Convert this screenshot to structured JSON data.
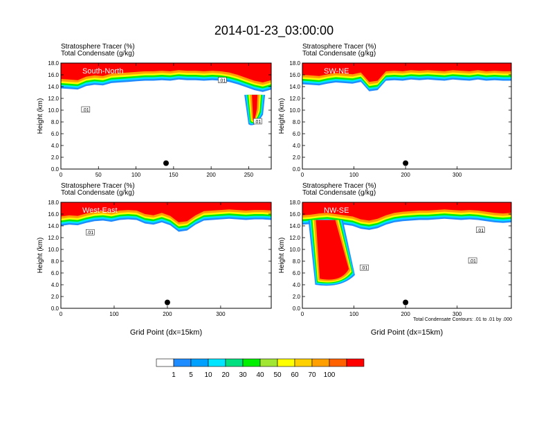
{
  "figure": {
    "title": "2014-01-23_03:00:00",
    "footnote": "Total Condensate Contours: .01 to .01 by .000"
  },
  "colorbar": {
    "colors": [
      "#ffffff",
      "#1e8cff",
      "#00a0ff",
      "#00e5ff",
      "#00e080",
      "#00ee00",
      "#a0e632",
      "#ffff00",
      "#ffd000",
      "#ffa000",
      "#ff6000",
      "#ff0000"
    ],
    "labels": [
      "1",
      "5",
      "10",
      "20",
      "30",
      "40",
      "50",
      "60",
      "70",
      "100"
    ]
  },
  "chart_data": [
    {
      "type": "heatmap",
      "panel_label": "South-North",
      "header_line1": "Stratosphere Tracer   (%)",
      "header_line2": "Total Condensate   (g/kg)",
      "ylabel": "Height (km)",
      "xlabel": "",
      "xlim": [
        0,
        280
      ],
      "ylim": [
        0,
        18
      ],
      "xticks": [
        "0",
        "50",
        "100",
        "150",
        "200",
        "250"
      ],
      "xtick_values": [
        0,
        50,
        100,
        150,
        200,
        250
      ],
      "yticks": [
        "0.0",
        "2.0",
        "4.0",
        "6.0",
        "8.0",
        "10.0",
        "12.0",
        "14.0",
        "16.0",
        "18.0"
      ],
      "tracer_base_km": [
        13.7,
        13.6,
        13.5,
        14.1,
        14.3,
        14.2,
        14.6,
        14.7,
        14.8,
        14.9,
        15.0,
        15.0,
        15.1,
        15.0,
        15.2,
        15.1,
        15.1,
        15.0,
        15.1,
        15.0,
        14.8,
        14.4,
        13.9,
        13.4,
        13.1,
        13.5
      ],
      "plume": [
        {
          "x": 258,
          "top_km": 12.6,
          "base_km": 7.6,
          "half_width": 15,
          "tip_x": 258
        }
      ],
      "marker": {
        "x": 140,
        "y_km": 1.0
      },
      "contour_labels": [
        {
          "text": ".01",
          "x": 33,
          "y_km": 10.0
        },
        {
          "text": ".01",
          "x": 215,
          "y_km": 15.0
        },
        {
          "text": ".01",
          "x": 262,
          "y_km": 8.0
        }
      ]
    },
    {
      "type": "heatmap",
      "panel_label": "SW-NE",
      "header_line1": "Stratosphere Tracer   (%)",
      "header_line2": "Total Condensate   (g/kg)",
      "ylabel": "Height (km)",
      "xlabel": "",
      "xlim": [
        0,
        405
      ],
      "ylim": [
        0,
        18
      ],
      "xticks": [
        "0",
        "100",
        "200",
        "300"
      ],
      "xtick_values": [
        0,
        100,
        200,
        300
      ],
      "yticks": [
        "0.0",
        "2.0",
        "4.0",
        "6.0",
        "8.0",
        "10.0",
        "12.0",
        "14.0",
        "16.0",
        "18.0"
      ],
      "tracer_base_km": [
        14.4,
        14.3,
        14.2,
        14.5,
        14.7,
        14.6,
        14.5,
        14.8,
        13.2,
        13.4,
        15.0,
        15.1,
        15.0,
        15.2,
        15.1,
        15.2,
        15.1,
        15.0,
        15.2,
        15.1,
        15.0,
        15.2,
        15.0,
        15.1,
        15.0,
        15.0
      ],
      "plume": [],
      "marker": {
        "x": 200,
        "y_km": 1.0
      },
      "contour_labels": []
    },
    {
      "type": "heatmap",
      "panel_label": "West-East",
      "header_line1": "Stratosphere Tracer   (%)",
      "header_line2": "Total Condensate   (g/kg)",
      "ylabel": "Height (km)",
      "xlabel": "Grid Point (dx=15km)",
      "xlim": [
        0,
        395
      ],
      "ylim": [
        0,
        18
      ],
      "xticks": [
        "0",
        "100",
        "200",
        "300"
      ],
      "xtick_values": [
        0,
        100,
        200,
        300
      ],
      "yticks": [
        "0.0",
        "2.0",
        "4.0",
        "6.0",
        "8.0",
        "10.0",
        "12.0",
        "14.0",
        "16.0",
        "18.0"
      ],
      "tracer_base_km": [
        14.0,
        14.2,
        14.1,
        14.5,
        14.8,
        14.9,
        14.7,
        15.0,
        15.1,
        15.0,
        14.4,
        14.2,
        14.6,
        14.1,
        13.0,
        13.2,
        14.2,
        14.9,
        15.0,
        15.1,
        15.2,
        15.1,
        15.0,
        15.1,
        15.1,
        15.0
      ],
      "plume": [],
      "marker": {
        "x": 200,
        "y_km": 1.0
      },
      "contour_labels": [
        {
          "text": ".01",
          "x": 55,
          "y_km": 12.8
        }
      ]
    },
    {
      "type": "heatmap",
      "panel_label": "NW-SE",
      "header_line1": "Stratosphere Tracer   (%)",
      "header_line2": "Total Condensate   (g/kg)",
      "ylabel": "Height (km)",
      "xlabel": "Grid Point (dx=15km)",
      "xlim": [
        0,
        405
      ],
      "ylim": [
        0,
        18
      ],
      "xticks": [
        "0",
        "100",
        "200",
        "300"
      ],
      "xtick_values": [
        0,
        100,
        200,
        300
      ],
      "yticks": [
        "0.0",
        "2.0",
        "4.0",
        "6.0",
        "8.0",
        "10.0",
        "12.0",
        "14.0",
        "16.0",
        "18.0"
      ],
      "tracer_base_km": [
        14.2,
        14.3,
        14.5,
        14.6,
        14.4,
        14.2,
        14.0,
        13.5,
        13.3,
        13.6,
        14.2,
        14.6,
        14.8,
        14.9,
        15.0,
        15.0,
        15.1,
        15.2,
        15.1,
        15.0,
        15.1,
        15.0,
        14.8,
        14.6,
        14.5,
        14.6
      ],
      "plume": [
        {
          "x": 45,
          "top_km": 15.0,
          "base_km": 4.0,
          "half_width": 25,
          "tip_x": 75
        }
      ],
      "marker": {
        "x": 200,
        "y_km": 1.0
      },
      "contour_labels": [
        {
          "text": ".01",
          "x": 345,
          "y_km": 13.2
        },
        {
          "text": ".01",
          "x": 330,
          "y_km": 8.0
        },
        {
          "text": ".01",
          "x": 120,
          "y_km": 6.8
        }
      ]
    }
  ]
}
